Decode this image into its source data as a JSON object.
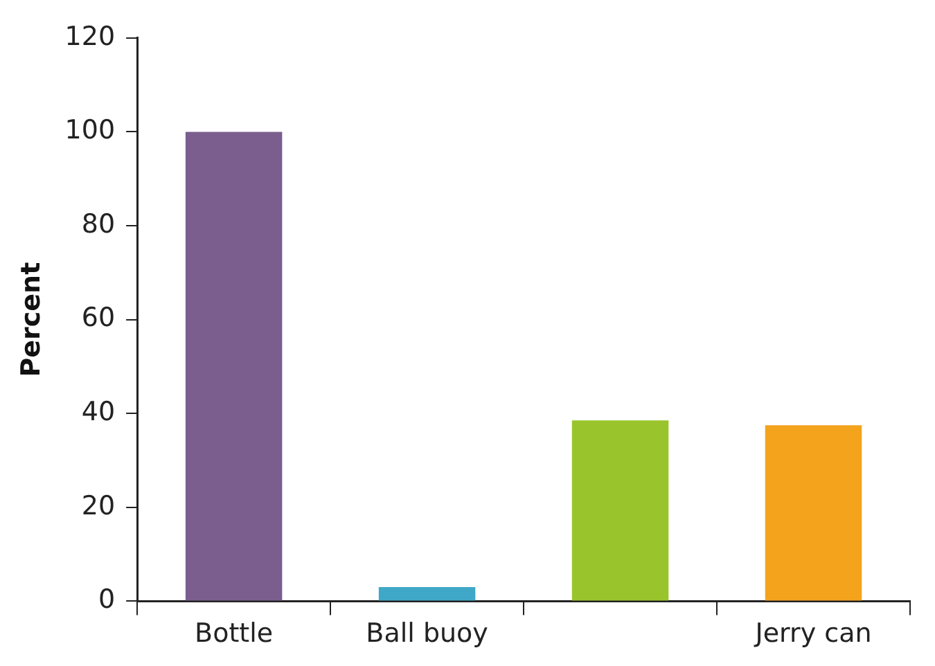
{
  "chart_data": {
    "type": "bar",
    "ylabel": "Percent",
    "categories": [
      "Bottle",
      "Ball buoy",
      null,
      "Jerry can"
    ],
    "values": [
      100,
      3,
      38.5,
      37.5
    ],
    "colors": [
      "#7b5e8e",
      "#3fa8c8",
      "#99c42c",
      "#f4a31d"
    ],
    "ylim": [
      0,
      120
    ],
    "yticks": [
      0,
      20,
      40,
      60,
      80,
      100,
      120
    ],
    "grid": false,
    "legend": false
  }
}
